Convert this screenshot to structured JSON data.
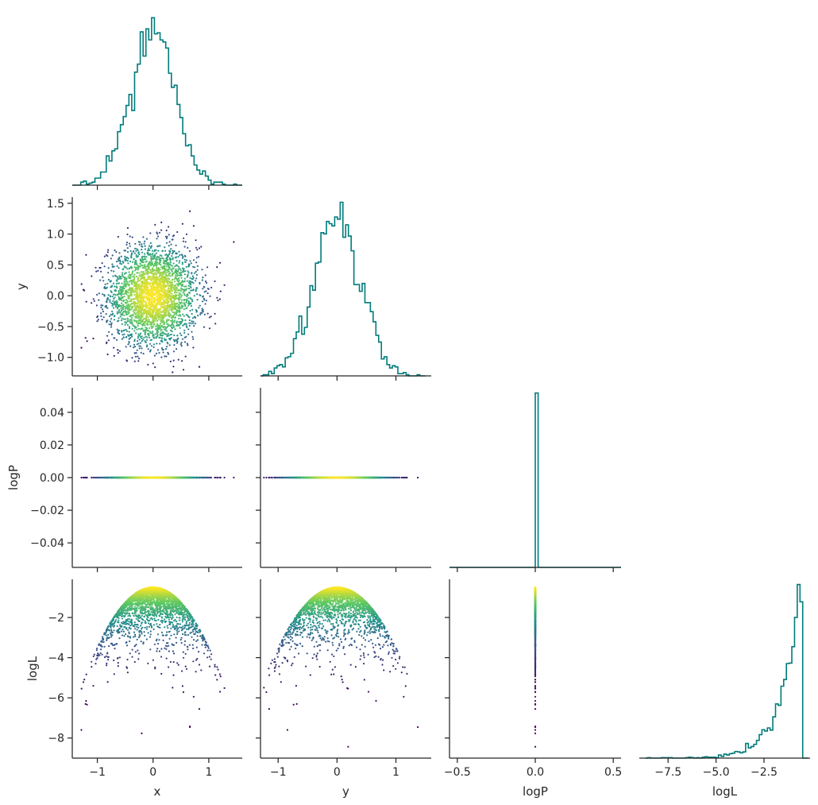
{
  "chart_data": {
    "type": "corner-plot",
    "parameters": [
      "x",
      "y",
      "logP",
      "logL"
    ],
    "colors": {
      "histogram": "#007b7b",
      "axes": "#262626",
      "colormap": [
        "#440154",
        "#3b528b",
        "#21918c",
        "#5ec962",
        "#fde725"
      ],
      "colormap_name": "viridis",
      "color_by": "logL"
    },
    "histograms": [
      {
        "param": "x",
        "bins": 60,
        "range": [
          -1.45,
          1.6
        ],
        "peak_at": 0.0
      },
      {
        "param": "y",
        "bins": 60,
        "range": [
          -1.3,
          1.5
        ],
        "peak_at": 0.0
      },
      {
        "param": "logP",
        "bins": 60,
        "range": [
          -0.55,
          0.55
        ],
        "spike_at": 0.0
      },
      {
        "param": "logL",
        "bins": 60,
        "range": [
          -8.7,
          -0.2
        ],
        "peak_at": -0.5
      }
    ],
    "axes": {
      "x": {
        "range": [
          -1.45,
          1.6
        ],
        "ticks": [
          -1,
          0,
          1
        ],
        "tick_labels": [
          "−1",
          "0",
          "1"
        ]
      },
      "y": {
        "range": [
          -1.3,
          1.6
        ],
        "ticks": [
          -1.0,
          -0.5,
          0.0,
          0.5,
          1.0,
          1.5
        ],
        "tick_labels": [
          "−1.0",
          "−0.5",
          "0.0",
          "0.5",
          "1.0",
          "1.5"
        ]
      },
      "logP": {
        "range": [
          -0.055,
          0.055
        ],
        "ticks": [
          -0.04,
          -0.02,
          0.0,
          0.02,
          0.04
        ],
        "tick_labels": [
          "−0.04",
          "−0.02",
          "0.00",
          "0.02",
          "0.04"
        ]
      },
      "logP_x": {
        "range": [
          -0.55,
          0.55
        ],
        "ticks": [
          -0.5,
          0.0,
          0.5
        ],
        "tick_labels": [
          "−0.5",
          "0.0",
          "0.5"
        ]
      },
      "logL": {
        "range": [
          -9.0,
          -0.1
        ],
        "ticks": [
          -8,
          -6,
          -4,
          -2
        ],
        "tick_labels": [
          "−8",
          "−6",
          "−4",
          "−2"
        ]
      },
      "logL_x": {
        "range": [
          -9.0,
          -0.1
        ],
        "ticks": [
          -7.5,
          -5.0,
          -2.5
        ],
        "tick_labels": [
          "−7.5",
          "−5.0",
          "−2.5"
        ]
      },
      "y_x": {
        "range": [
          -1.3,
          1.6
        ],
        "ticks": [
          -1,
          0,
          1
        ],
        "tick_labels": [
          "−1",
          "0",
          "1"
        ]
      }
    },
    "samples": {
      "count": 3000,
      "distribution": "gaussian",
      "sigma_x": 0.4,
      "sigma_y": 0.4,
      "logP_constant": 0.0,
      "logL_formula": "-0.5 - 3*(x^2+y^2)"
    },
    "axis_labels": {
      "row": [
        "",
        "y",
        "logP",
        "logL"
      ],
      "col": [
        "x",
        "y",
        "logP",
        "logL"
      ]
    },
    "grid": false,
    "legend": "none"
  }
}
